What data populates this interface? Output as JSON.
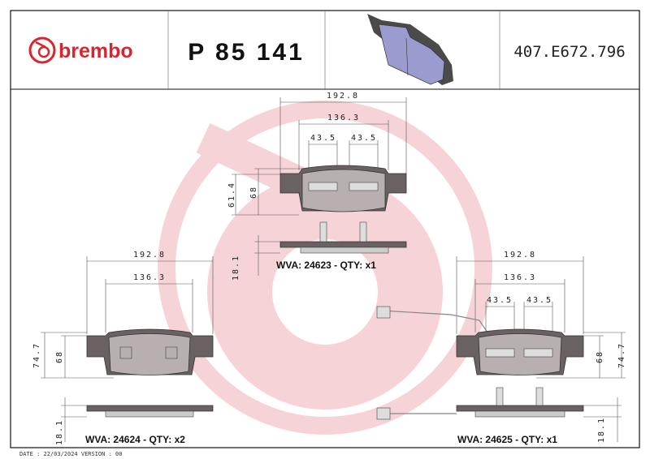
{
  "header": {
    "brand": "brembo",
    "part_number": "P 85 141",
    "reference": "407.E672.796"
  },
  "colors": {
    "brand_red": "#d9262e",
    "watermark": "#f6d3d6",
    "pad_preview": "#9a9cd0"
  },
  "views": [
    {
      "width_total": "192.8",
      "width_friction": "136.3",
      "spacing_left": "43.5",
      "spacing_right": "43.5",
      "height_total": "61.4",
      "height_friction": "68",
      "thickness": "18.1",
      "label": "WVA: 24623 - QTY: x1"
    },
    {
      "width_total": "192.8",
      "width_friction": "136.3",
      "height_total": "74.7",
      "height_friction": "68",
      "thickness": "18.1",
      "label": "WVA: 24624 - QTY: x2"
    },
    {
      "width_total": "192.8",
      "width_friction": "136.3",
      "spacing_left": "43.5",
      "spacing_right": "43.5",
      "height_total": "74.7",
      "height_friction": "68",
      "thickness": "18.1",
      "label": "WVA: 24625 - QTY: x1"
    }
  ],
  "footer": {
    "date_version": "DATE : 22/03/2024 VERSION : 00"
  }
}
